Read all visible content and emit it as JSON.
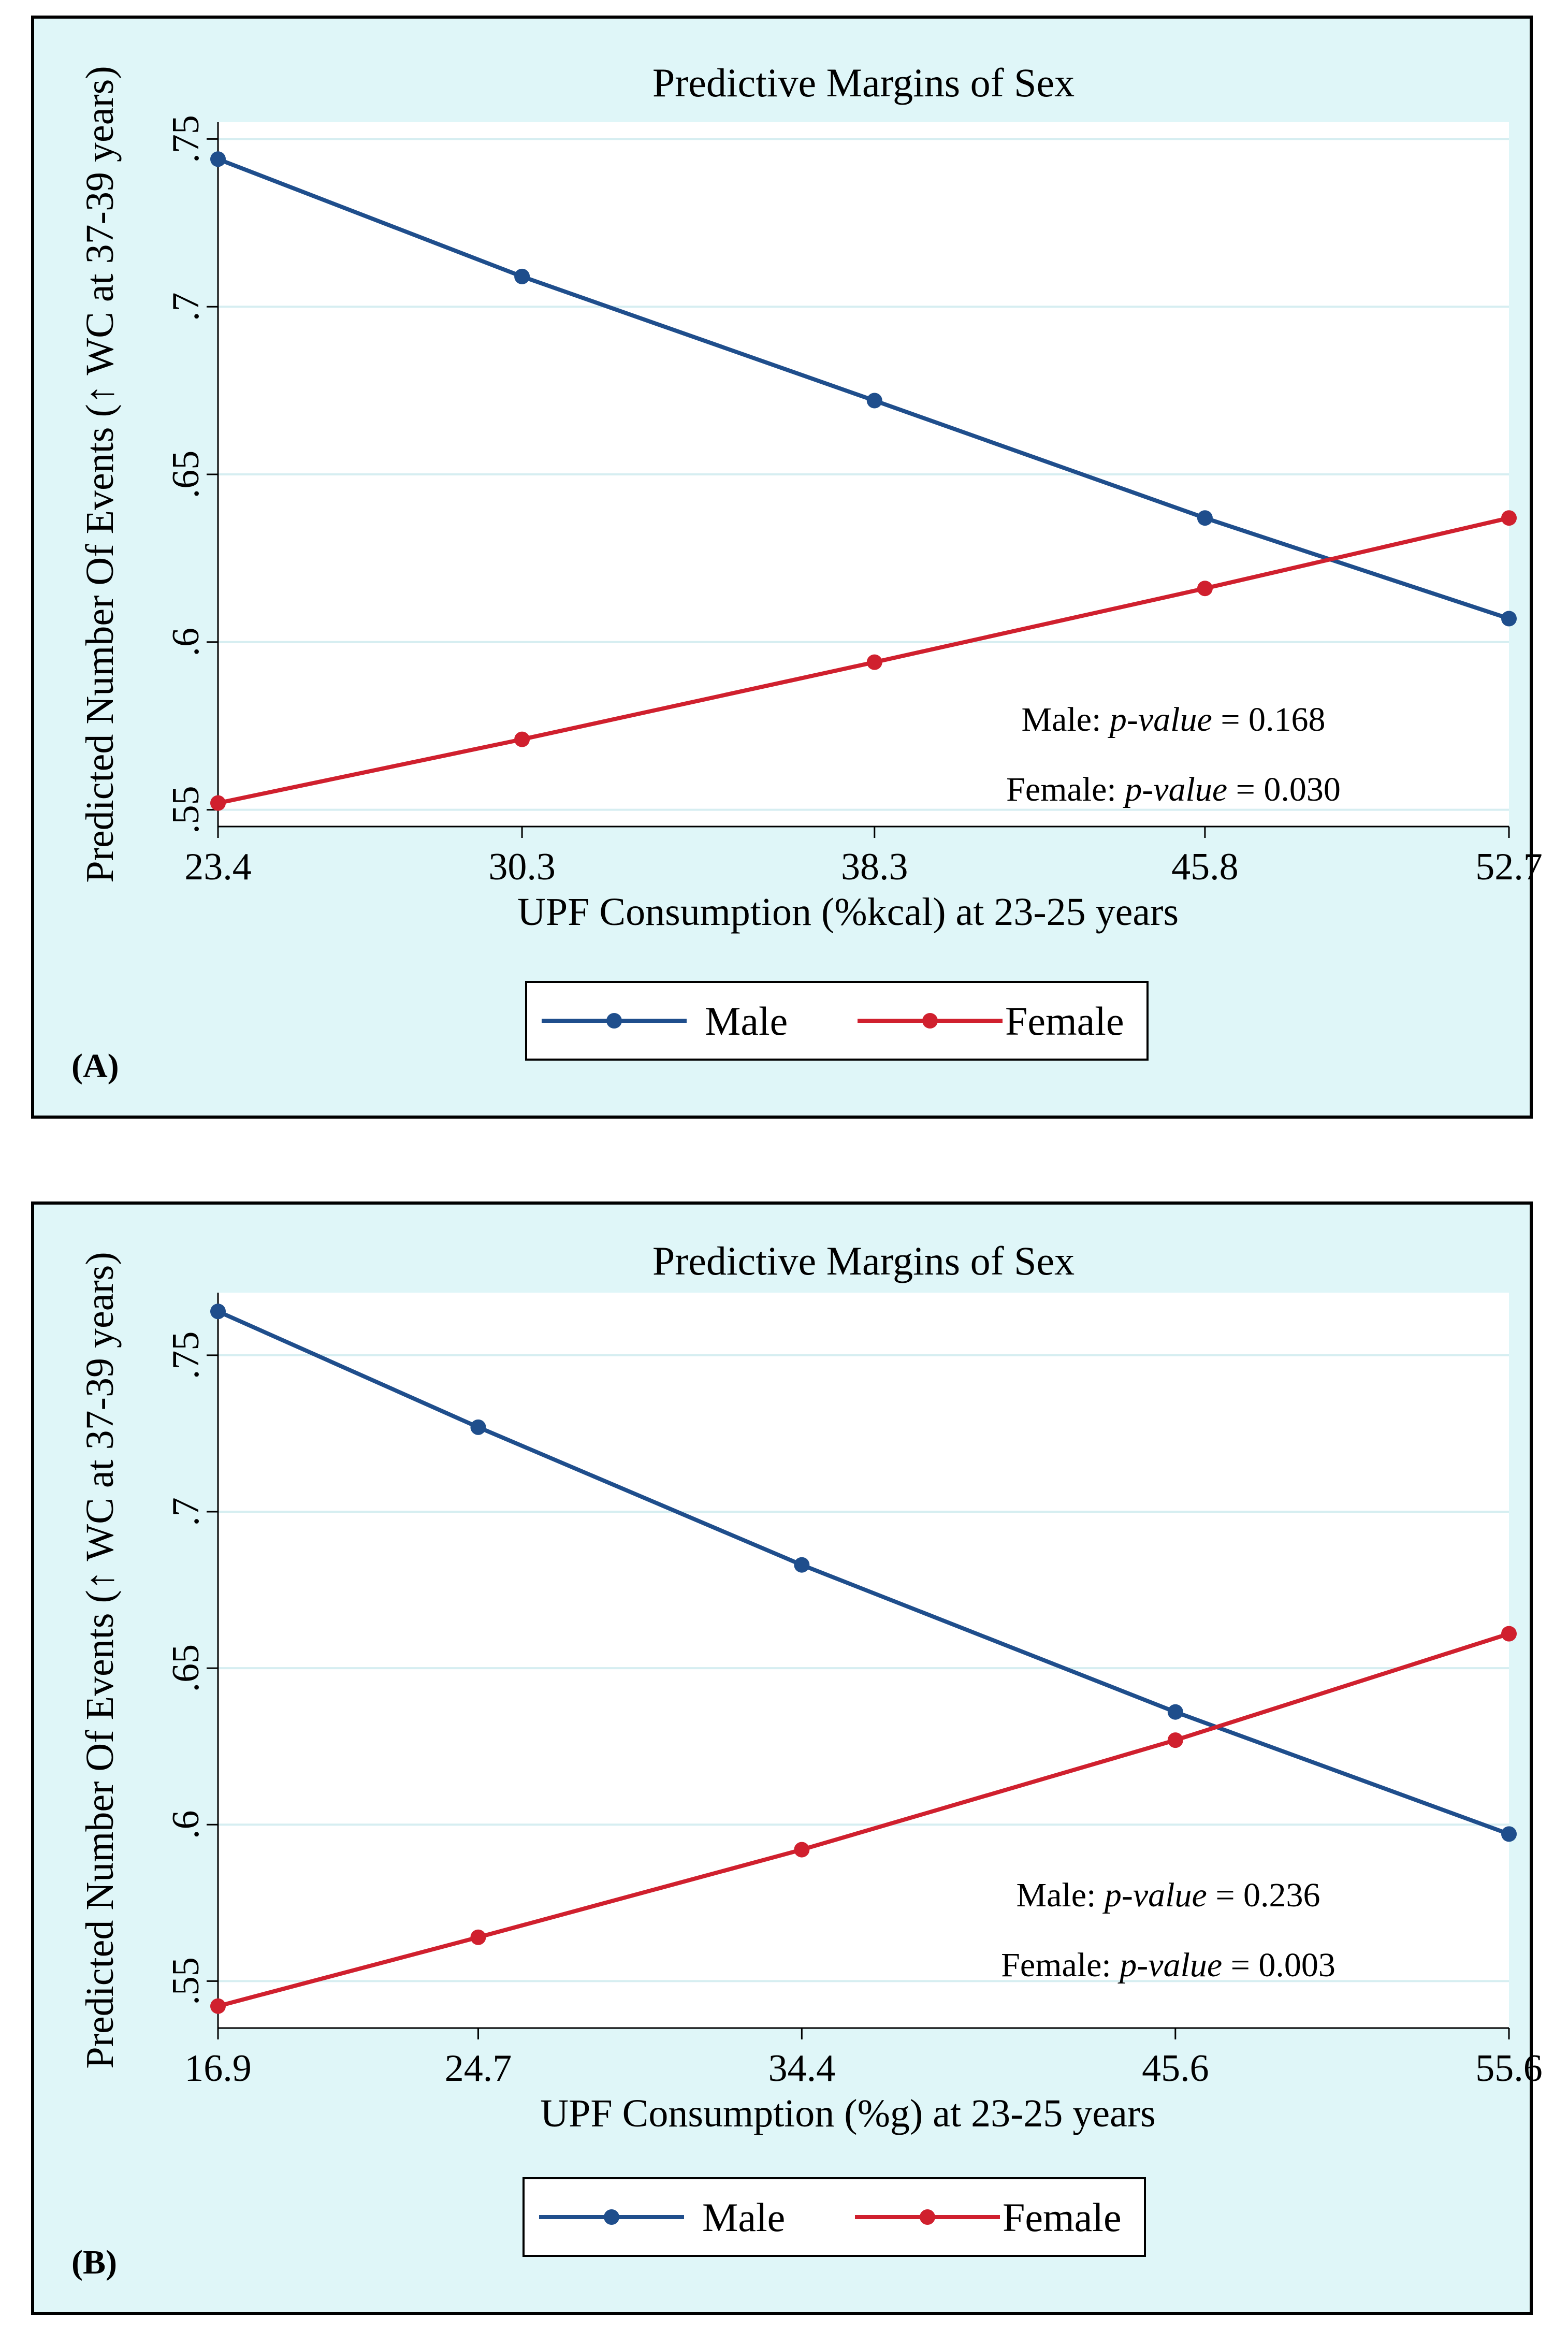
{
  "chart_data": [
    {
      "type": "line",
      "panel_label": "(A)",
      "title": "Predictive Margins of Sex",
      "xlabel": "UPF Consumption (%kcal) at 23-25 years",
      "ylabel": "Predicted Number Of Events (↑ WC at 37-39 years)",
      "x_ticks": [
        "23.4",
        "30.3",
        "38.3",
        "45.8",
        "52.7"
      ],
      "x": [
        23.4,
        30.3,
        38.3,
        45.8,
        52.7
      ],
      "xlim": [
        23.4,
        52.7
      ],
      "y_ticks": [
        0.55,
        0.6,
        0.65,
        0.7,
        0.75
      ],
      "y_tick_labels": [
        ".55",
        ".6",
        ".65",
        ".7",
        ".75"
      ],
      "ylim": [
        0.545,
        0.755
      ],
      "grid": true,
      "series": [
        {
          "name": "Male",
          "color": "#1f4e8c",
          "values": [
            0.744,
            0.709,
            0.672,
            0.637,
            0.607
          ]
        },
        {
          "name": "Female",
          "color": "#d0202e",
          "values": [
            0.552,
            0.571,
            0.594,
            0.616,
            0.637
          ]
        }
      ],
      "annotations": [
        {
          "prefix": "Male: ",
          "italic": "p-value",
          "suffix": " = 0.168"
        },
        {
          "prefix": "Female: ",
          "italic": "p-value",
          "suffix": " = 0.030"
        }
      ],
      "legend": [
        "Male",
        "Female"
      ],
      "legend_position": "bottom-center"
    },
    {
      "type": "line",
      "panel_label": "(B)",
      "title": "Predictive Margins of Sex",
      "xlabel": "UPF Consumption (%g) at 23-25 years",
      "ylabel": "Predicted Number Of Events (↑ WC at 37-39 years)",
      "x_ticks": [
        "16.9",
        "24.7",
        "34.4",
        "45.6",
        "55.6"
      ],
      "x": [
        16.9,
        24.7,
        34.4,
        45.6,
        55.6
      ],
      "xlim": [
        16.9,
        55.6
      ],
      "y_ticks": [
        0.55,
        0.6,
        0.65,
        0.7,
        0.75
      ],
      "y_tick_labels": [
        ".55",
        ".6",
        ".65",
        ".7",
        ".75"
      ],
      "ylim": [
        0.535,
        0.77
      ],
      "grid": true,
      "series": [
        {
          "name": "Male",
          "color": "#1f4e8c",
          "values": [
            0.764,
            0.727,
            0.683,
            0.636,
            0.597
          ]
        },
        {
          "name": "Female",
          "color": "#d0202e",
          "values": [
            0.542,
            0.564,
            0.592,
            0.627,
            0.661
          ]
        }
      ],
      "annotations": [
        {
          "prefix": "Male: ",
          "italic": "p-value",
          "suffix": " = 0.236"
        },
        {
          "prefix": "Female: ",
          "italic": "p-value",
          "suffix": " = 0.003"
        }
      ],
      "legend": [
        "Male",
        "Female"
      ],
      "legend_position": "bottom-center"
    }
  ]
}
